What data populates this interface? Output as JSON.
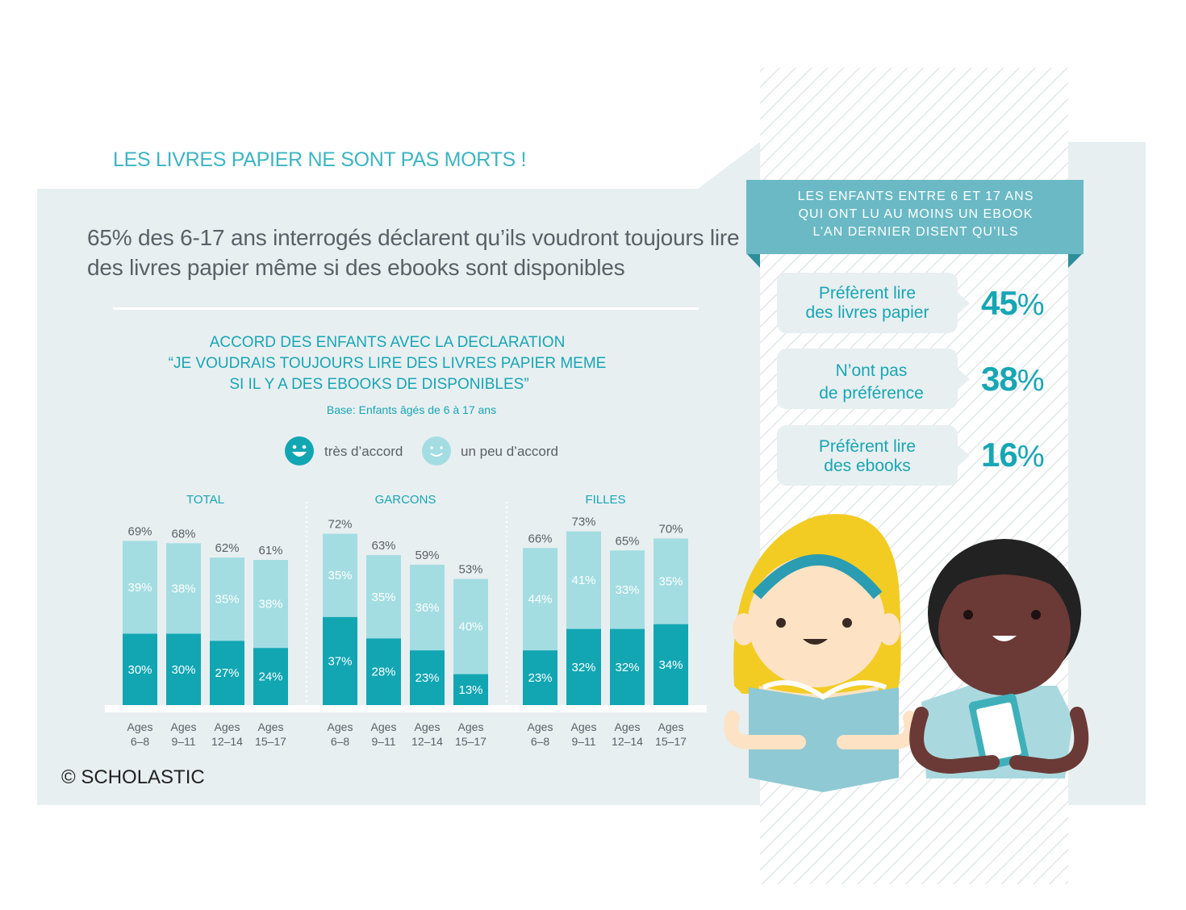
{
  "headline": "LES LIVRES PAPIER NE SONT PAS MORTS !",
  "statement": "65% des 6-17 ans interrogés déclarent qu’ils voudront toujours lire des livres papier même si des ebooks sont disponibles",
  "chart_title_lines": [
    "ACCORD DES ENFANTS AVEC LA DECLARATION",
    "“JE VOUDRAIS TOUJOURS LIRE DES LIVRES PAPIER MEME",
    "SI IL Y A DES EBOOKS DE DISPONIBLES”"
  ],
  "chart_base": "Base: Enfants âgés de 6 à 17 ans",
  "legend": [
    {
      "label": "très d’accord",
      "color": "#12a6b3",
      "icon": "smiley-icon"
    },
    {
      "label": "un peu d’accord",
      "color": "#a3dde2",
      "icon": "smiley-icon"
    }
  ],
  "copyright": "© SCHOLASTIC",
  "colors": {
    "accent": "#17a6b4",
    "dark_bar": "#12a6b3",
    "light_bar": "#a3dde2",
    "panel": "#e8eff1",
    "ribbon": "#6ab9c5"
  },
  "sidebar": {
    "ribbon_lines": [
      "LES ENFANTS ENTRE 6 ET 17 ANS",
      "QUI ONT LU AU MOINS UN EBOOK",
      "L’AN DERNIER DISENT QU’ILS"
    ],
    "items": [
      {
        "label_lines": [
          "Préfèrent lire",
          "des livres papier"
        ],
        "value": "45",
        "unit": "%"
      },
      {
        "label_lines": [
          "N’ont pas",
          "de préférence"
        ],
        "value": "38",
        "unit": "%"
      },
      {
        "label_lines": [
          "Préfèrent lire",
          "des ebooks"
        ],
        "value": "16",
        "unit": "%"
      }
    ]
  },
  "chart_data": {
    "type": "bar",
    "stacked": true,
    "series_names": [
      "très d’accord",
      "un peu d’accord"
    ],
    "groups": [
      {
        "name": "TOTAL",
        "bars": [
          {
            "age_line1": "Ages",
            "age_line2": "6–8",
            "total": 69,
            "tres": 30,
            "peu": 39
          },
          {
            "age_line1": "Ages",
            "age_line2": "9–11",
            "total": 68,
            "tres": 30,
            "peu": 38
          },
          {
            "age_line1": "Ages",
            "age_line2": "12–14",
            "total": 62,
            "tres": 27,
            "peu": 35
          },
          {
            "age_line1": "Ages",
            "age_line2": "15–17",
            "total": 61,
            "tres": 24,
            "peu": 38
          }
        ]
      },
      {
        "name": "GARCONS",
        "bars": [
          {
            "age_line1": "Ages",
            "age_line2": "6–8",
            "total": 72,
            "tres": 37,
            "peu": 35
          },
          {
            "age_line1": "Ages",
            "age_line2": "9–11",
            "total": 63,
            "tres": 28,
            "peu": 35
          },
          {
            "age_line1": "Ages",
            "age_line2": "12–14",
            "total": 59,
            "tres": 23,
            "peu": 36
          },
          {
            "age_line1": "Ages",
            "age_line2": "15–17",
            "total": 53,
            "tres": 13,
            "peu": 40
          }
        ]
      },
      {
        "name": "FILLES",
        "bars": [
          {
            "age_line1": "Ages",
            "age_line2": "6–8",
            "total": 66,
            "tres": 23,
            "peu": 44
          },
          {
            "age_line1": "Ages",
            "age_line2": "9–11",
            "total": 73,
            "tres": 32,
            "peu": 41
          },
          {
            "age_line1": "Ages",
            "age_line2": "12–14",
            "total": 65,
            "tres": 32,
            "peu": 33
          },
          {
            "age_line1": "Ages",
            "age_line2": "15–17",
            "total": 70,
            "tres": 34,
            "peu": 35
          }
        ]
      }
    ]
  }
}
